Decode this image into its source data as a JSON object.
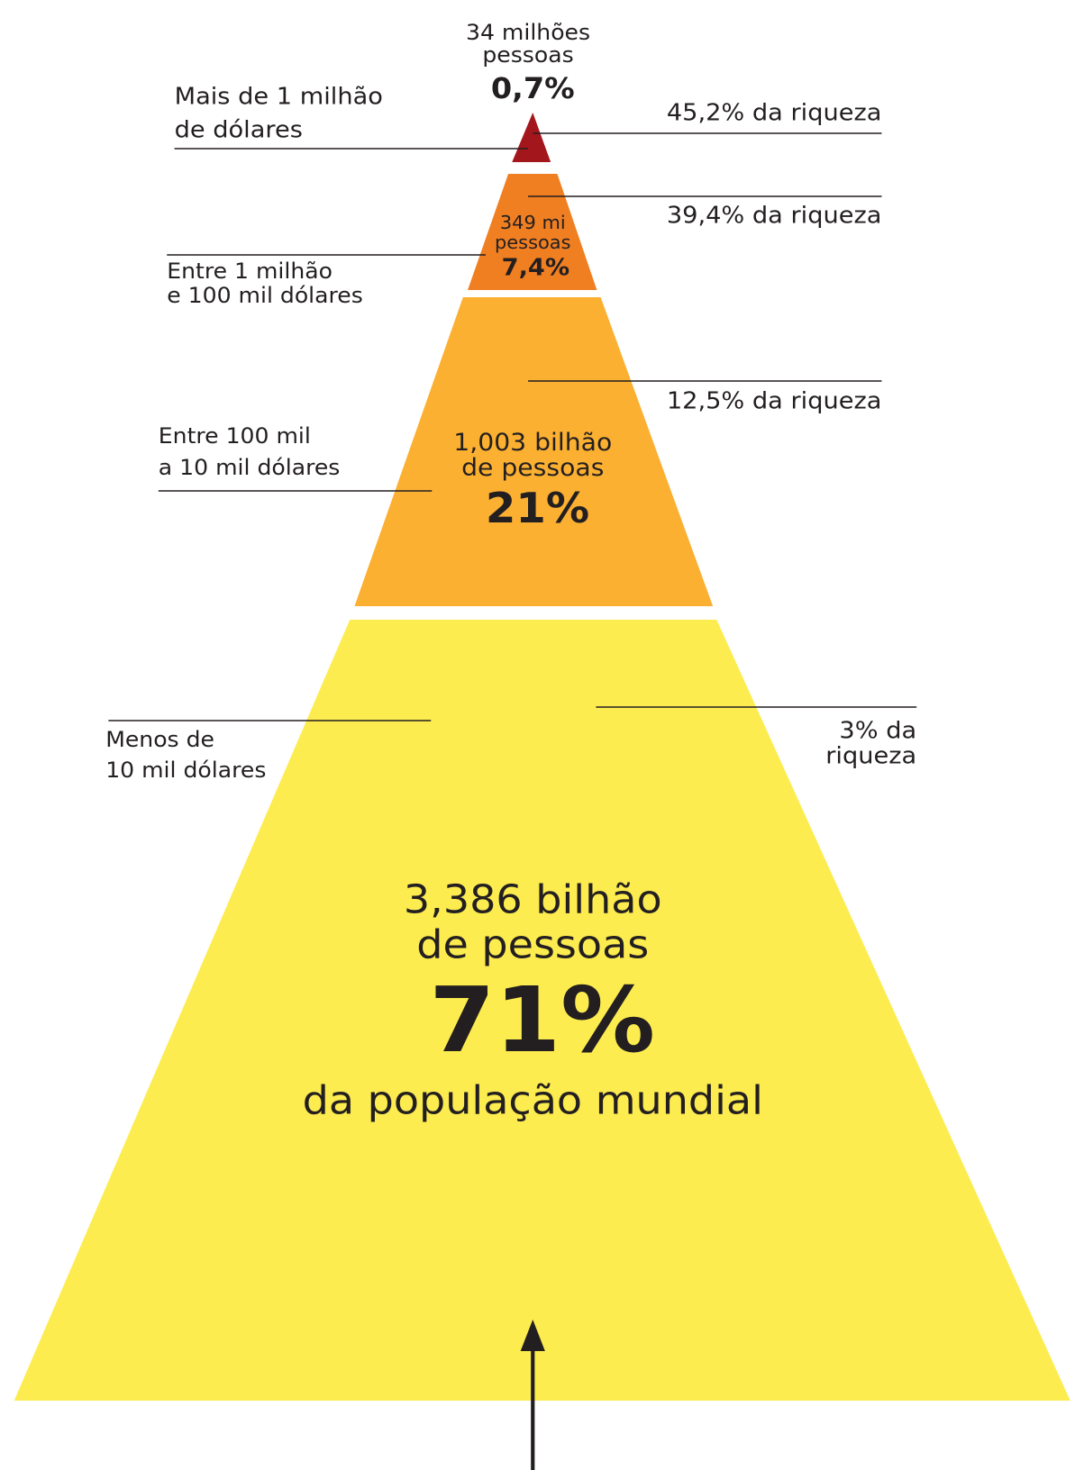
{
  "tiers": [
    {
      "range": [
        "Mais de 1 milhão",
        "de dólares"
      ],
      "population": [
        "34 milhões",
        "pessoas"
      ],
      "share": "0,7%",
      "wealth": [
        "45,2% da riqueza"
      ]
    },
    {
      "range": [
        "Entre 1 milhão",
        "e 100 mil dólares"
      ],
      "population": [
        "349 mi",
        "pessoas"
      ],
      "share": "7,4%",
      "wealth": [
        "39,4% da riqueza"
      ]
    },
    {
      "range": [
        "Entre 100 mil",
        "a 10 mil dólares"
      ],
      "population": [
        "1,003 bilhão",
        "de pessoas"
      ],
      "share": "21%",
      "wealth": [
        "12,5% da riqueza"
      ]
    },
    {
      "range": [
        "Menos de",
        "10 mil dólares"
      ],
      "population": [
        "3,386 bilhão",
        "de pessoas"
      ],
      "share": "71%",
      "footnote": "da população mundial",
      "wealth": [
        "3% da",
        "riqueza"
      ]
    }
  ]
}
